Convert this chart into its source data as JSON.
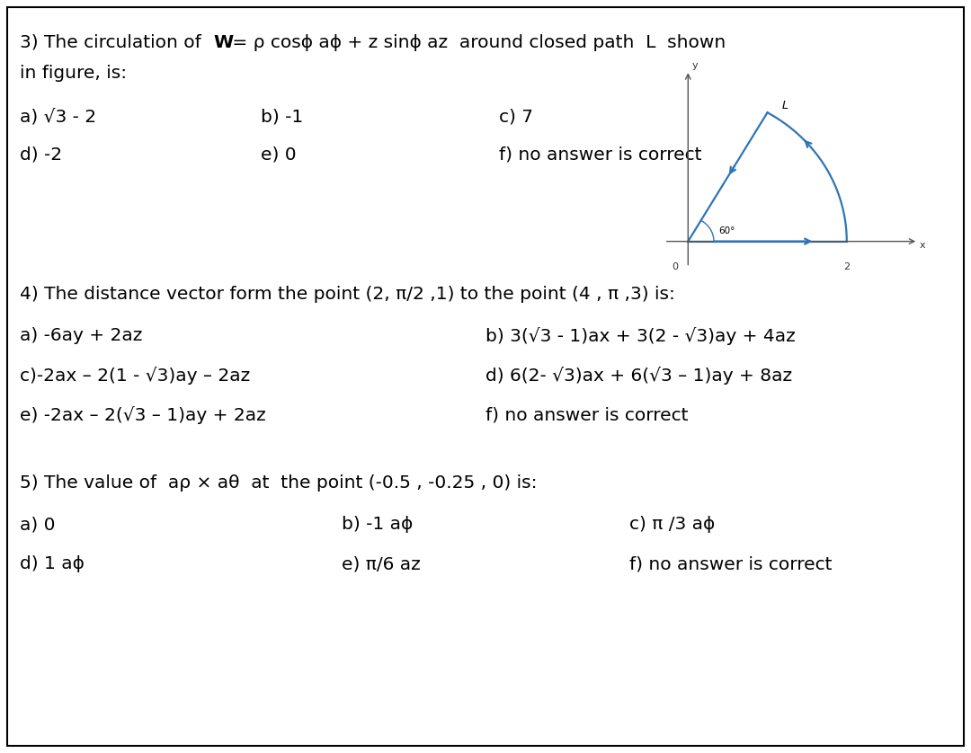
{
  "bg_color": "#ffffff",
  "border_color": "#000000",
  "text_color": "#000000",
  "diagram_color": "#2e75b6",
  "body_fontsize": 14.5,
  "q3_line1_pre": "3) The circulation of ",
  "q3_line1_bold": "W",
  "q3_line1_post": " = ρ cosϕ aϕ + z sinϕ az  around closed path  L  shown",
  "q3_line2": "in figure, is:",
  "q3_a": "a) √3 - 2",
  "q3_b": "b) -1",
  "q3_c": "c) 7",
  "q3_d": "d) -2",
  "q3_e": "e) 0",
  "q3_f": "f) no answer is correct",
  "q4_line1": "4) The distance vector form the point (2, π/2 ,1) to the point (4 , π ,3) is:",
  "q4_a": "a) -6ay + 2az",
  "q4_b": "b) 3(√3 - 1)ax + 3(2 - √3)ay + 4az",
  "q4_c": "c)-2ax – 2(1 - √3)ay – 2az",
  "q4_d": "d) 6(2- √3)ax + 6(√3 – 1)ay + 8az",
  "q4_e": "e) -2ax – 2(√3 – 1)ay + 2az",
  "q4_f": "f) no answer is correct",
  "q5_line1_pre": "5) The value of  a",
  "q5_line1_post": " × aθ  at  the point (-0.5 , -0.25 , 0) is:",
  "q5_a": "a) 0",
  "q5_b": "b) -1 aϕ",
  "q5_c": "c) π /3 aϕ",
  "q5_d": "d) 1 aϕ",
  "q5_e": "e) π/6 az",
  "q5_f": "f) no answer is correct"
}
